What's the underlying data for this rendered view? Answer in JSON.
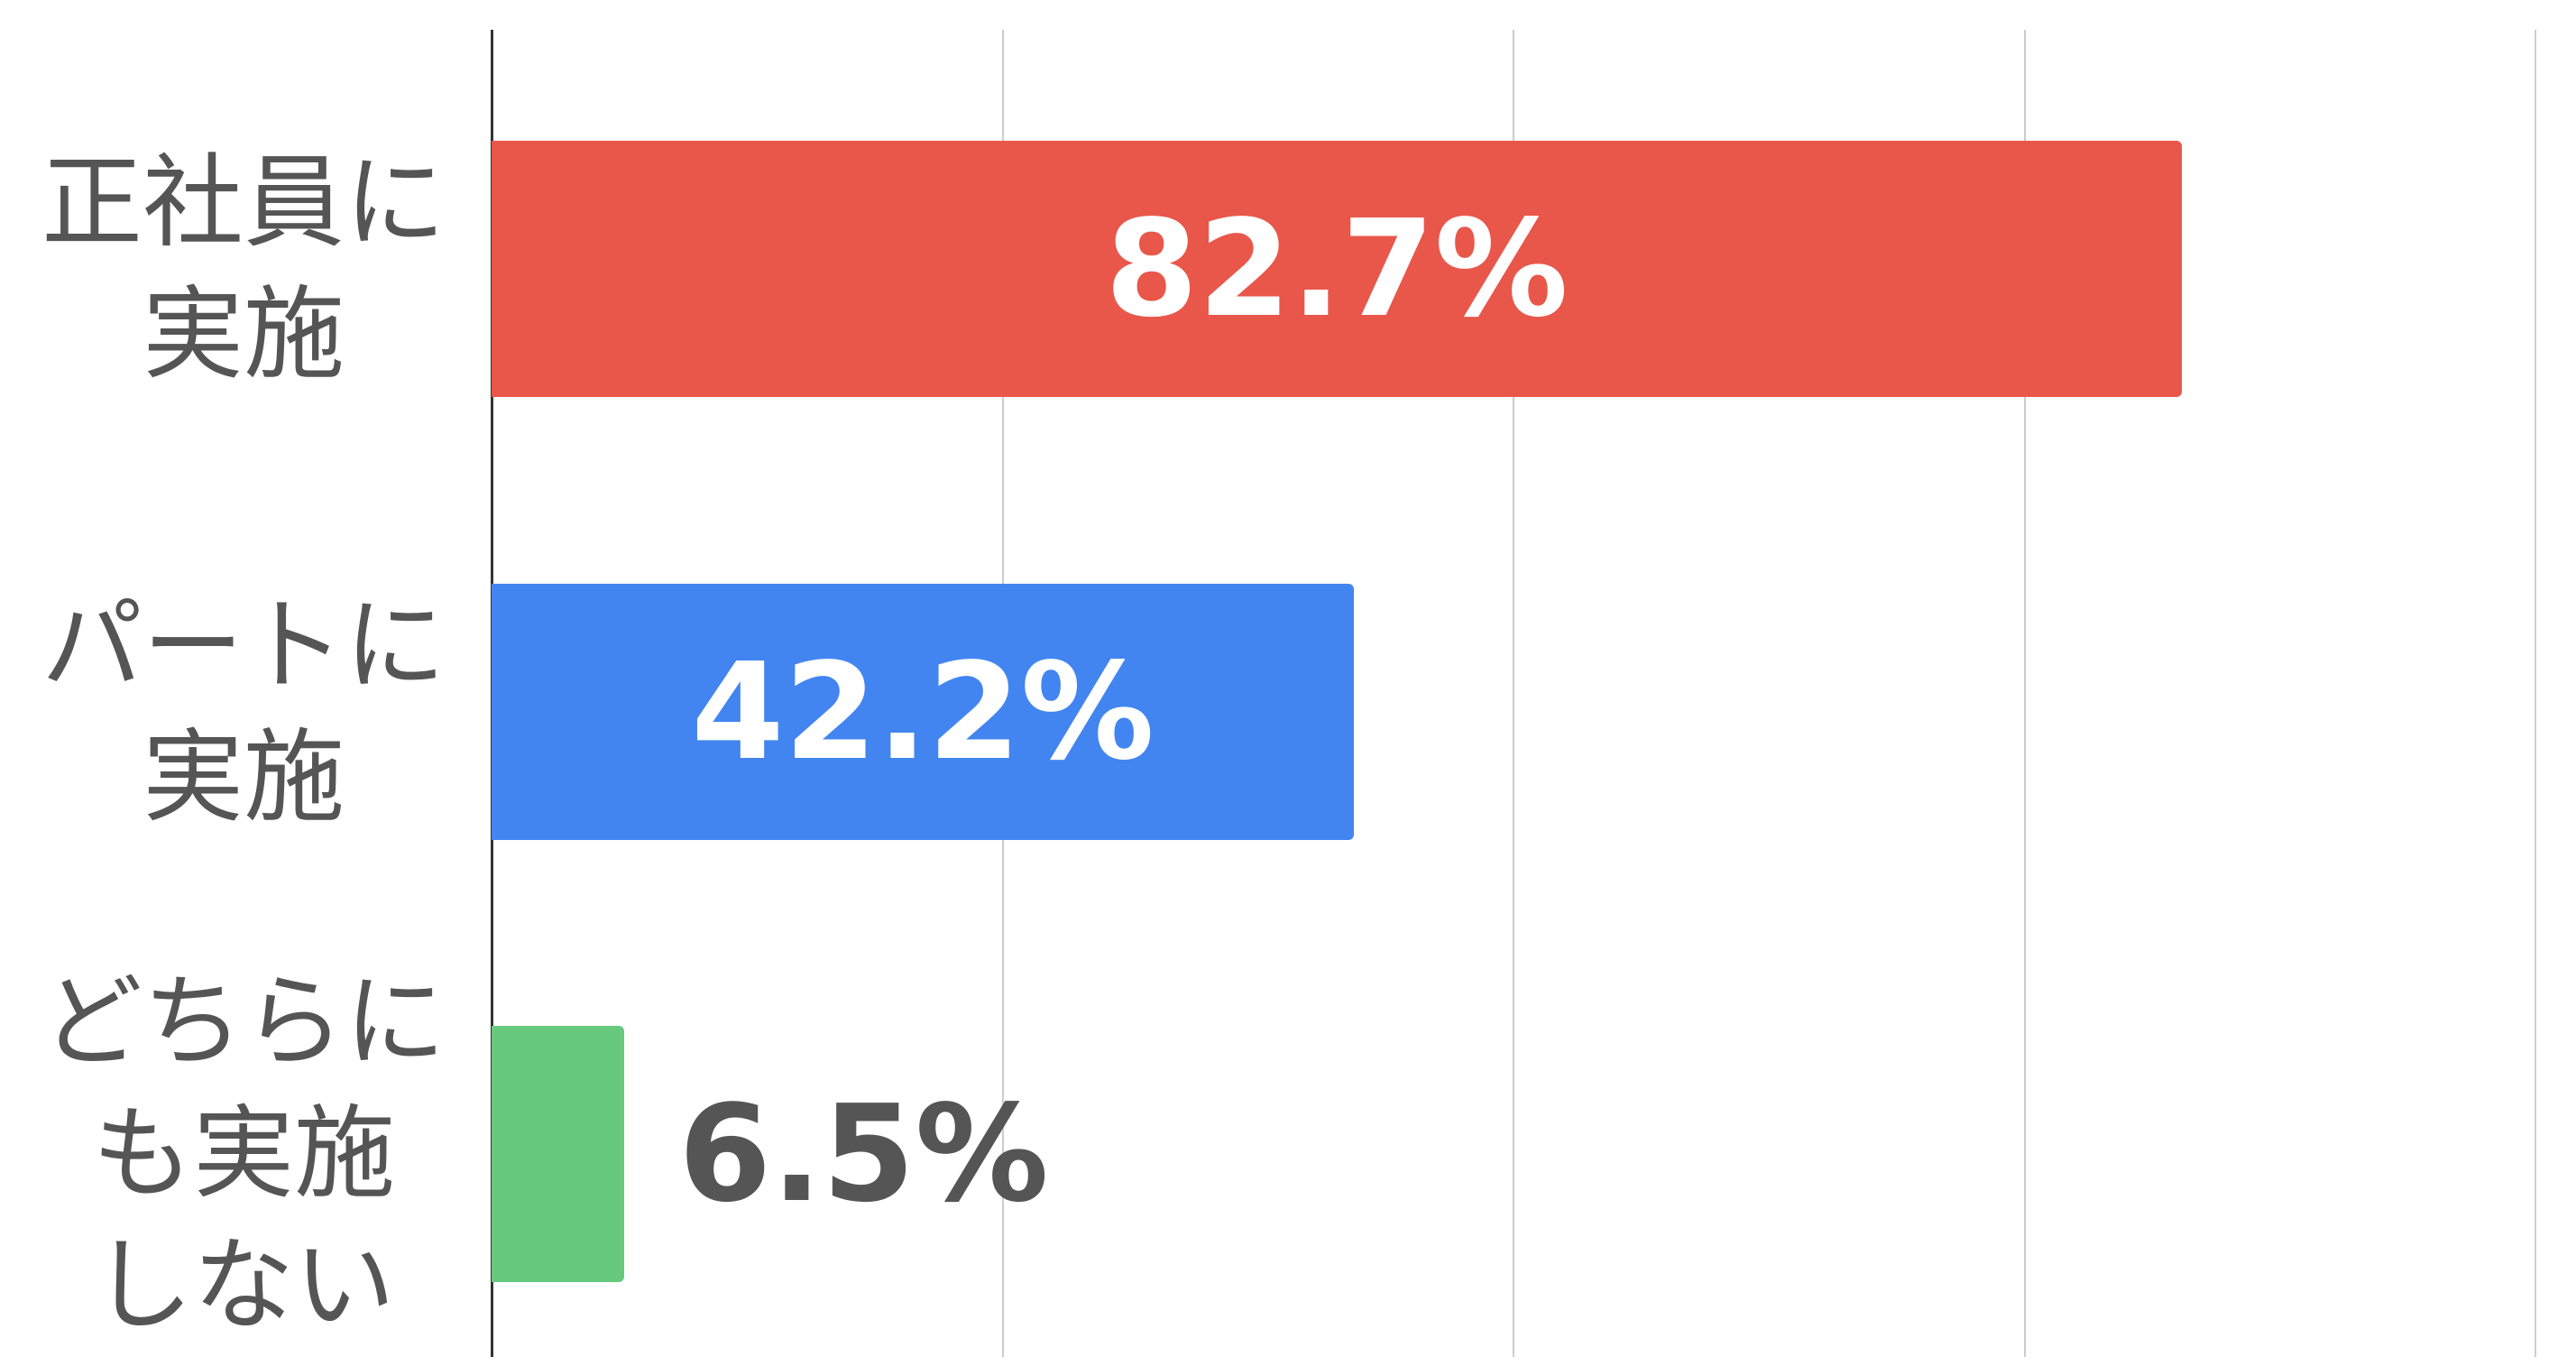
{
  "chart_data": {
    "type": "bar",
    "orientation": "horizontal",
    "categories": [
      "正社員に\n実施",
      "パートに\n実施",
      "どちらに\nも実施\nしない"
    ],
    "series": [
      {
        "colors": [
          "#e8574a",
          "#4285f0",
          "#66c97e"
        ],
        "values": [
          82.7,
          42.2,
          6.5
        ],
        "value_labels": [
          "82.7%",
          "42.2%",
          "6.5%"
        ]
      }
    ],
    "xlim": [
      0,
      100
    ],
    "xticks": [
      0,
      25,
      50,
      75,
      100
    ],
    "grid": true
  }
}
